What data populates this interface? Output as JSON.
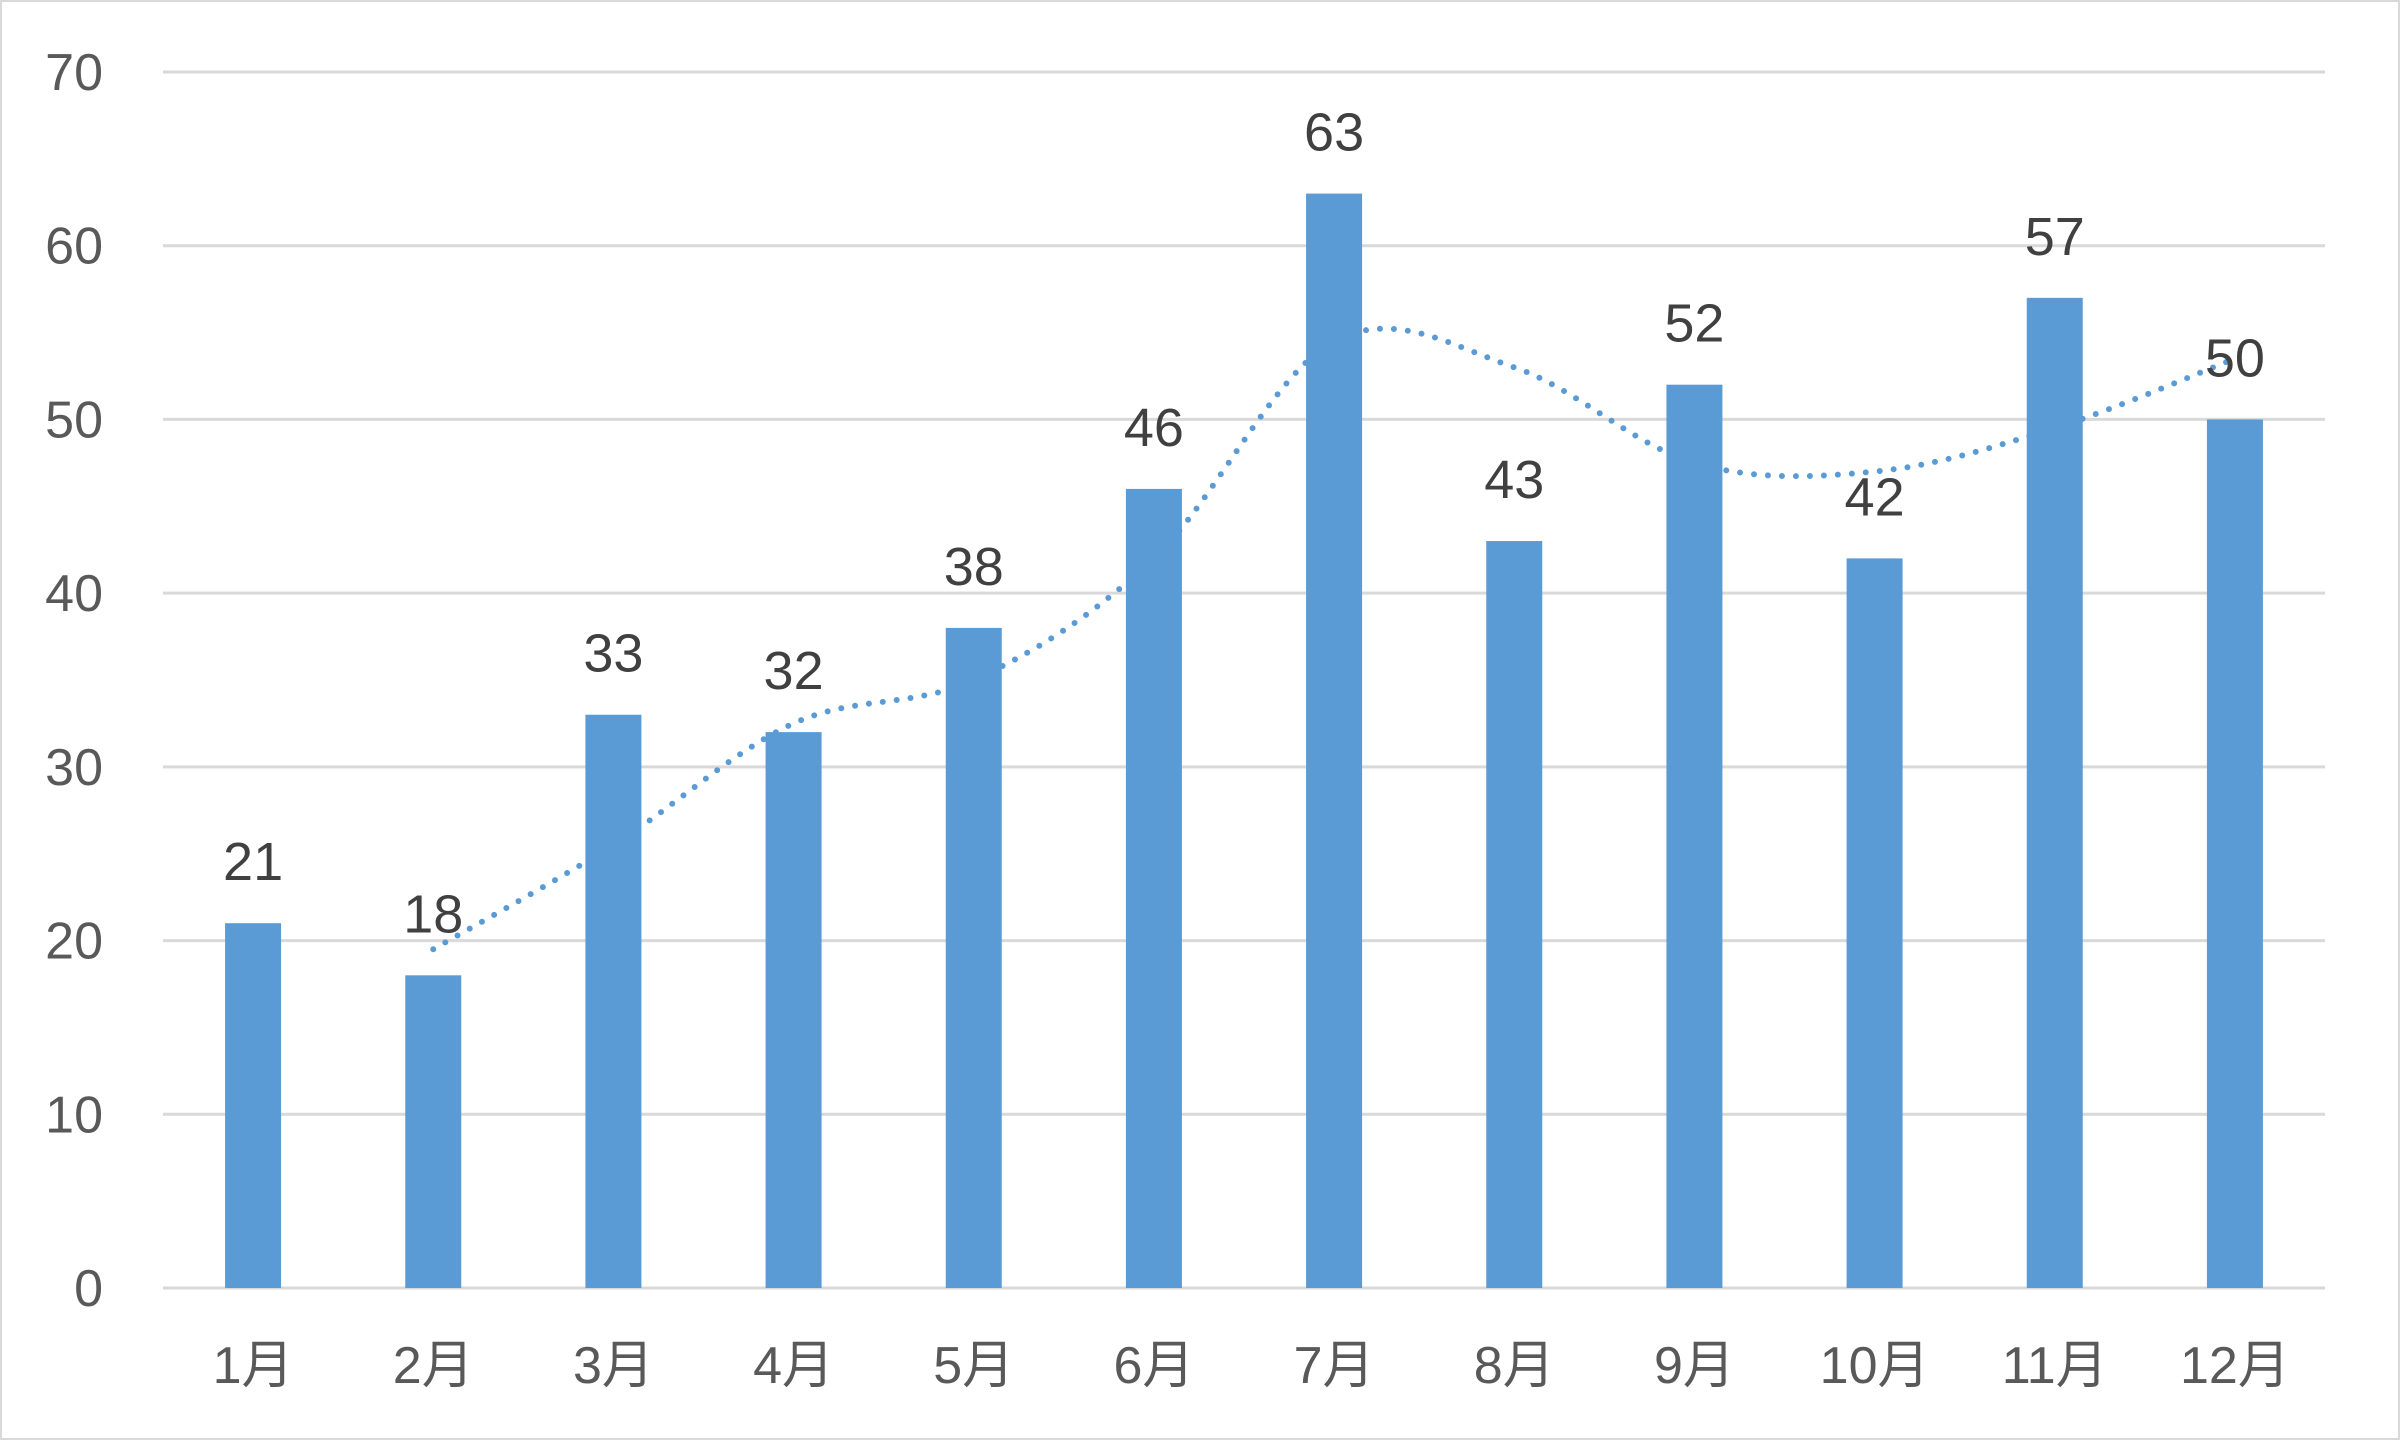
{
  "chart_data": {
    "type": "bar",
    "categories": [
      "1月",
      "2月",
      "3月",
      "4月",
      "5月",
      "6月",
      "7月",
      "8月",
      "9月",
      "10月",
      "11月",
      "12月"
    ],
    "series": [
      {
        "values": [
          21,
          18,
          33,
          32,
          38,
          46,
          63,
          43,
          52,
          42,
          57,
          50
        ],
        "color": "#5b9bd5",
        "data_labels": true
      }
    ],
    "trendline": {
      "type": "moving-average",
      "period": 2,
      "style": "dotted",
      "color": "#5b9bd5",
      "values": [
        null,
        19.5,
        25.5,
        32.5,
        35,
        42,
        54.5,
        53,
        47.5,
        47,
        49.5,
        53.5
      ]
    },
    "title": "",
    "xlabel": "",
    "ylabel": "",
    "ylim": [
      0,
      70
    ],
    "yticks": [
      0,
      10,
      20,
      30,
      40,
      50,
      60,
      70
    ],
    "grid": true,
    "legend": "none",
    "colors": {
      "bar": "#5b9bd5",
      "gridline": "#d9d9d9",
      "axis_text": "#595959",
      "data_label": "#404040"
    }
  }
}
